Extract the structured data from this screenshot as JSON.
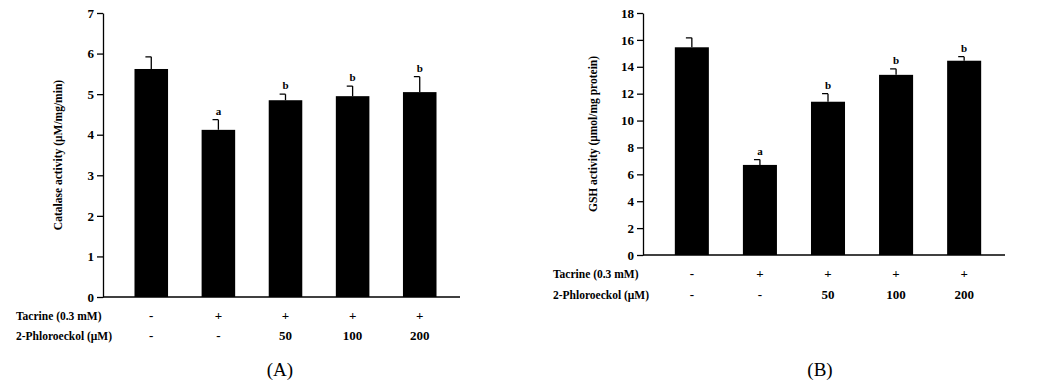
{
  "chart_data": [
    {
      "type": "bar",
      "title": "(A)",
      "ylabel": "Catalase activity (μM/mg/min)",
      "categories": [
        null,
        null,
        null,
        null,
        null
      ],
      "values": [
        5.62,
        4.12,
        4.85,
        4.95,
        5.05
      ],
      "errors": [
        0.3,
        0.25,
        0.15,
        0.25,
        0.38
      ],
      "annotations": [
        null,
        "a",
        "b",
        "b",
        "b"
      ],
      "treatments": [
        {
          "name": "Tacrine (0.3 mM)",
          "levels": [
            "-",
            "+",
            "+",
            "+",
            "+"
          ]
        },
        {
          "name": "2-Phloroeckol (μM)",
          "levels": [
            "-",
            "-",
            "50",
            "100",
            "200"
          ]
        }
      ],
      "color": "#000000",
      "ylim": [
        0,
        7
      ],
      "yticks": [
        0,
        1,
        2,
        3,
        4,
        5,
        6,
        7
      ]
    },
    {
      "type": "bar",
      "title": "(B)",
      "ylabel": "GSH activity (μmol/mg protein)",
      "categories": [
        null,
        null,
        null,
        null,
        null
      ],
      "values": [
        15.45,
        6.7,
        11.4,
        13.4,
        14.45
      ],
      "errors": [
        0.7,
        0.4,
        0.6,
        0.45,
        0.3
      ],
      "annotations": [
        null,
        "a",
        "b",
        "b",
        "b"
      ],
      "treatments": [
        {
          "name": "Tacrine (0.3 mM)",
          "levels": [
            "-",
            "+",
            "+",
            "+",
            "+"
          ]
        },
        {
          "name": "2-Phloroeckol (μM)",
          "levels": [
            "-",
            "-",
            "50",
            "100",
            "200"
          ]
        }
      ],
      "color": "#000000",
      "ylim": [
        0,
        18
      ],
      "yticks": [
        0,
        2,
        4,
        6,
        8,
        10,
        12,
        14,
        16,
        18
      ]
    }
  ]
}
